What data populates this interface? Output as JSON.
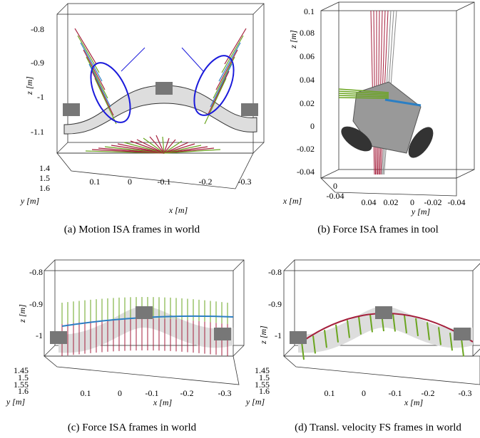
{
  "panels": [
    {
      "caption": "(a) Motion ISA frames in world",
      "z_label": "z [m]",
      "y_label": "y [m]",
      "x_label": "x [m]",
      "z_ticks": [
        "-0.8",
        "-0.9",
        "-1",
        "-1.1"
      ],
      "y_ticks": [
        "1.4",
        "1.5",
        "1.6"
      ],
      "x_ticks": [
        "0.1",
        "0",
        "-0.1",
        "-0.2",
        "-0.3"
      ]
    },
    {
      "caption": "(b) Force ISA frames in tool",
      "z_label": "z [m]",
      "y_label": "y [m]",
      "x_label": "x [m]",
      "z_ticks": [
        "0.1",
        "0.08",
        "0.06",
        "0.04",
        "0.02",
        "0",
        "-0.02",
        "-0.04"
      ],
      "x_ticks": [
        "0",
        "-0.04"
      ],
      "y_ticks": [
        "0.04",
        "0.02",
        "0",
        "-0.02",
        "-0.04"
      ]
    },
    {
      "caption": "(c) Force ISA frames in world",
      "z_label": "z [m]",
      "y_label": "y [m]",
      "x_label": "x [m]",
      "z_ticks": [
        "-0.8",
        "-0.9",
        "-1"
      ],
      "y_ticks": [
        "1.45",
        "1.5",
        "1.55",
        "1.6"
      ],
      "x_ticks": [
        "0.1",
        "0",
        "-0.1",
        "-0.2",
        "-0.3"
      ]
    },
    {
      "caption": "(d) Transl. velocity FS frames in world",
      "z_label": "z [m]",
      "y_label": "y [m]",
      "x_label": "x [m]",
      "z_ticks": [
        "-0.8",
        "-0.9",
        "-1"
      ],
      "y_ticks": [
        "1.45",
        "1.5",
        "1.55",
        "1.6"
      ],
      "x_ticks": [
        "0.1",
        "0",
        "-0.1",
        "-0.2",
        "-0.3"
      ]
    }
  ]
}
